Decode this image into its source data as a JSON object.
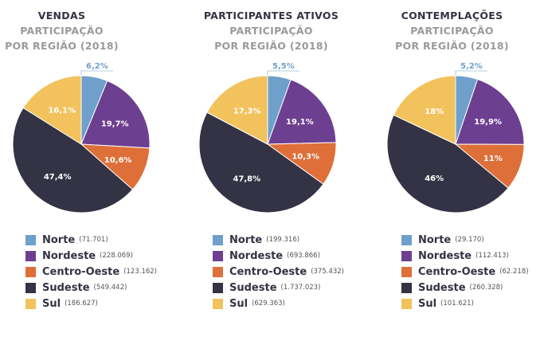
{
  "colors": {
    "Norte": "#6f9fcb",
    "Nordeste": "#6d3f91",
    "Centro-Oeste": "#de6f39",
    "Sudeste": "#333345",
    "Sul": "#f2c25d",
    "label_outside": "#6f9fcb"
  },
  "chart_data": [
    {
      "type": "pie",
      "title": "VENDAS",
      "subtitle": [
        "PARTICIPAÇÃO",
        "POR REGIÃO (2018)"
      ],
      "slices": [
        {
          "name": "Norte",
          "value": 6.2,
          "label": "6,2%",
          "count": "(71.701)"
        },
        {
          "name": "Nordeste",
          "value": 19.7,
          "label": "19,7%",
          "count": "(228.069)"
        },
        {
          "name": "Centro-Oeste",
          "value": 10.6,
          "label": "10,6%",
          "count": "(123.162)"
        },
        {
          "name": "Sudeste",
          "value": 47.4,
          "label": "47,4%",
          "count": "(549.442)"
        },
        {
          "name": "Sul",
          "value": 16.1,
          "label": "16,1%",
          "count": "(186.627)"
        }
      ]
    },
    {
      "type": "pie",
      "title": "PARTICIPANTES ATIVOS",
      "subtitle": [
        "PARTICIPAÇÃO",
        "POR REGIÃO (2018)"
      ],
      "slices": [
        {
          "name": "Norte",
          "value": 5.5,
          "label": "5,5%",
          "count": "(199.316)"
        },
        {
          "name": "Nordeste",
          "value": 19.1,
          "label": "19,1%",
          "count": "(693.866)"
        },
        {
          "name": "Centro-Oeste",
          "value": 10.3,
          "label": "10,3%",
          "count": "(375.432)"
        },
        {
          "name": "Sudeste",
          "value": 47.8,
          "label": "47,8%",
          "count": "(1.737.023)"
        },
        {
          "name": "Sul",
          "value": 17.3,
          "label": "17,3%",
          "count": "(629.363)"
        }
      ]
    },
    {
      "type": "pie",
      "title": "CONTEMPLAÇÕES",
      "subtitle": [
        "PARTICIPAÇÃO",
        "POR REGIÃO (2018)"
      ],
      "slices": [
        {
          "name": "Norte",
          "value": 5.2,
          "label": "5,2%",
          "count": "(29.170)"
        },
        {
          "name": "Nordeste",
          "value": 19.9,
          "label": "19,9%",
          "count": "(112.413)"
        },
        {
          "name": "Centro-Oeste",
          "value": 11,
          "label": "11%",
          "count": "(62.218)"
        },
        {
          "name": "Sudeste",
          "value": 46,
          "label": "46%",
          "count": "(260.328)"
        },
        {
          "name": "Sul",
          "value": 18,
          "label": "18%",
          "count": "(101.621)"
        }
      ]
    }
  ]
}
